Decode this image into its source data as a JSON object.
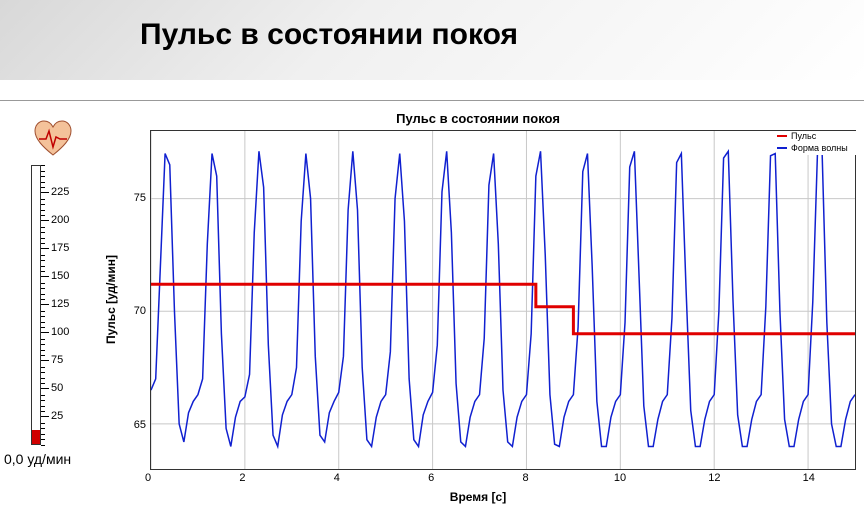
{
  "page_title": "Пульс в состоянии покоя",
  "gauge": {
    "ticks": [
      225,
      200,
      175,
      150,
      125,
      100,
      75,
      50,
      25
    ],
    "min": 0,
    "max": 250,
    "readout": "0,0 уд/мин"
  },
  "chart": {
    "type": "line",
    "title": "Пульс в состоянии покоя",
    "xlabel": "Время [с]",
    "ylabel": "Пульс [уд/мин]",
    "xlim": [
      0,
      15
    ],
    "ylim": [
      63,
      78
    ],
    "xticks": [
      0,
      2,
      4,
      6,
      8,
      10,
      12,
      14
    ],
    "yticks": [
      65,
      70,
      75
    ],
    "background_color": "#ffffff",
    "grid_color": "#c8c8c8",
    "border_color": "#333333",
    "title_fontsize": 13,
    "label_fontsize": 12,
    "tick_fontsize": 11,
    "series": [
      {
        "name": "Пульс",
        "color": "#e00000",
        "line_width": 3,
        "x": [
          0,
          8.2,
          8.2,
          9.0,
          9.0,
          15
        ],
        "y": [
          71.2,
          71.2,
          70.2,
          70.2,
          69.0,
          69.0
        ]
      },
      {
        "name": "Форма волны",
        "color": "#1020d0",
        "line_width": 1.5,
        "x": [
          0.0,
          0.1,
          0.2,
          0.3,
          0.4,
          0.5,
          0.6,
          0.7,
          0.8,
          0.9,
          1.0,
          1.1,
          1.2,
          1.3,
          1.4,
          1.5,
          1.6,
          1.7,
          1.8,
          1.9,
          2.0,
          2.1,
          2.2,
          2.3,
          2.4,
          2.5,
          2.6,
          2.7,
          2.8,
          2.9,
          3.0,
          3.1,
          3.2,
          3.3,
          3.4,
          3.5,
          3.6,
          3.7,
          3.8,
          3.9,
          4.0,
          4.1,
          4.2,
          4.3,
          4.4,
          4.5,
          4.6,
          4.7,
          4.8,
          4.9,
          5.0,
          5.1,
          5.2,
          5.3,
          5.4,
          5.5,
          5.6,
          5.7,
          5.8,
          5.9,
          6.0,
          6.1,
          6.2,
          6.3,
          6.4,
          6.5,
          6.6,
          6.7,
          6.8,
          6.9,
          7.0,
          7.1,
          7.2,
          7.3,
          7.4,
          7.5,
          7.6,
          7.7,
          7.8,
          7.9,
          8.0,
          8.1,
          8.2,
          8.3,
          8.4,
          8.5,
          8.6,
          8.7,
          8.8,
          8.9,
          9.0,
          9.1,
          9.2,
          9.3,
          9.4,
          9.5,
          9.6,
          9.7,
          9.8,
          9.9,
          10.0,
          10.1,
          10.2,
          10.3,
          10.4,
          10.5,
          10.6,
          10.7,
          10.8,
          10.9,
          11.0,
          11.1,
          11.2,
          11.3,
          11.4,
          11.5,
          11.6,
          11.7,
          11.8,
          11.9,
          12.0,
          12.1,
          12.2,
          12.3,
          12.4,
          12.5,
          12.6,
          12.7,
          12.8,
          12.9,
          13.0,
          13.1,
          13.2,
          13.3,
          13.4,
          13.5,
          13.6,
          13.7,
          13.8,
          13.9,
          14.0,
          14.1,
          14.2,
          14.3,
          14.4,
          14.5,
          14.6,
          14.7,
          14.8,
          14.9,
          15.0
        ],
        "y": [
          66.5,
          67.0,
          72.0,
          77.0,
          76.5,
          70.0,
          65.0,
          64.2,
          65.5,
          66.0,
          66.3,
          67.0,
          73.0,
          77.0,
          76.0,
          69.0,
          64.8,
          64.0,
          65.3,
          66.0,
          66.2,
          67.2,
          73.5,
          77.1,
          75.5,
          68.5,
          64.5,
          64.0,
          65.4,
          66.0,
          66.3,
          67.5,
          74.0,
          77.0,
          75.0,
          68.0,
          64.5,
          64.2,
          65.5,
          66.0,
          66.4,
          68.0,
          74.5,
          77.1,
          74.5,
          67.5,
          64.3,
          64.0,
          65.3,
          66.0,
          66.3,
          68.2,
          75.0,
          77.0,
          74.0,
          67.0,
          64.3,
          64.0,
          65.4,
          66.0,
          66.4,
          68.5,
          75.3,
          77.1,
          73.5,
          66.8,
          64.2,
          64.0,
          65.3,
          66.0,
          66.3,
          68.8,
          75.6,
          77.0,
          73.0,
          66.5,
          64.2,
          64.0,
          65.3,
          66.0,
          66.3,
          69.0,
          76.0,
          77.1,
          72.5,
          66.3,
          64.1,
          64.0,
          65.3,
          66.0,
          66.3,
          69.3,
          76.2,
          77.0,
          72.0,
          66.0,
          64.0,
          64.0,
          65.3,
          66.0,
          66.3,
          69.5,
          76.4,
          77.1,
          71.5,
          65.8,
          64.0,
          64.0,
          65.2,
          66.0,
          66.3,
          69.7,
          76.6,
          77.0,
          71.0,
          65.6,
          64.0,
          64.0,
          65.2,
          66.0,
          66.3,
          70.0,
          76.8,
          77.1,
          70.5,
          65.4,
          64.0,
          64.0,
          65.2,
          66.0,
          66.3,
          70.2,
          76.9,
          77.0,
          70.0,
          65.2,
          64.0,
          64.0,
          65.2,
          66.0,
          66.3,
          70.4,
          77.0,
          77.0,
          69.5,
          65.0,
          64.0,
          64.0,
          65.2,
          66.0,
          66.3
        ]
      }
    ],
    "legend": {
      "position": "top-right",
      "items": [
        {
          "label": "Пульс",
          "color": "#e00000"
        },
        {
          "label": "Форма волны",
          "color": "#1020d0"
        }
      ]
    }
  }
}
